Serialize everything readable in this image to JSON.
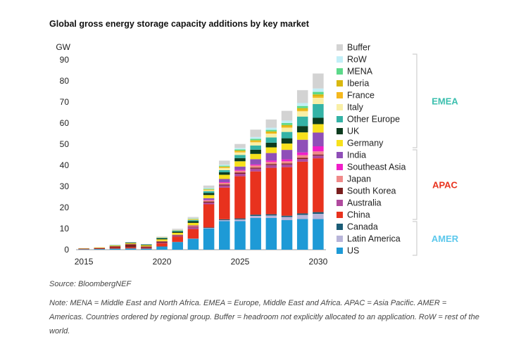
{
  "title": "Global gross energy storage capacity additions by key market",
  "source": "Source: BloombergNEF",
  "note": "Note: MENA = Middle East and North Africa. EMEA = Europe, Middle East and Africa. APAC = Asia Pacific. AMER = Americas. Countries ordered by regional group. Buffer = headroom not explicitly allocated to an application. RoW = rest of the world.",
  "colors": {
    "US": "#1e9ad6",
    "Latin America": "#b8b5d9",
    "Canada": "#1b5c76",
    "China": "#e8321e",
    "Australia": "#b04a9e",
    "South Korea": "#7a1f1f",
    "Japan": "#f08a8a",
    "Southeast Asia": "#f01ec8",
    "India": "#8f4fb8",
    "Germany": "#f7e11c",
    "UK": "#0d3b1f",
    "Other Europe": "#34b3a6",
    "Italy": "#f9efa6",
    "France": "#f5b81e",
    "Iberia": "#d9b80f",
    "MENA": "#5cd98a",
    "RoW": "#c2eff7",
    "Buffer": "#d3d3d3",
    "EMEA": "#3bbfae",
    "APAC": "#e8321e",
    "AMER": "#5cc8ec"
  },
  "chart_data": {
    "type": "bar",
    "stacked": true,
    "title": "Global gross energy storage capacity additions by key market",
    "ylabel": "GW",
    "xlabel": "",
    "ylim": [
      0,
      90
    ],
    "yticks": [
      0,
      10,
      20,
      30,
      40,
      50,
      60,
      70,
      80,
      90
    ],
    "xticks": [
      "2015",
      "2020",
      "2025",
      "2030"
    ],
    "categories": [
      "2015",
      "2016",
      "2017",
      "2018",
      "2019",
      "2020",
      "2021",
      "2022",
      "2023",
      "2024",
      "2025",
      "2026",
      "2027",
      "2028",
      "2029",
      "2030"
    ],
    "series": [
      {
        "name": "US",
        "values": [
          0.2,
          0.3,
          0.5,
          0.6,
          0.5,
          1.5,
          3.5,
          5,
          10,
          13.5,
          13.5,
          15,
          15,
          14,
          14.5,
          14.5
        ]
      },
      {
        "name": "Latin America",
        "values": [
          0,
          0,
          0,
          0,
          0,
          0,
          0.1,
          0.2,
          0.3,
          0.5,
          0.8,
          1,
          1.2,
          1.5,
          2,
          2.5
        ]
      },
      {
        "name": "Canada",
        "values": [
          0,
          0,
          0,
          0,
          0,
          0,
          0.1,
          0.1,
          0.2,
          0.4,
          0.5,
          0.6,
          0.6,
          0.6,
          0.7,
          0.8
        ]
      },
      {
        "name": "China",
        "values": [
          0.1,
          0.2,
          0.5,
          0.5,
          0.4,
          1.5,
          2.5,
          4.5,
          11,
          15,
          20,
          20.5,
          22,
          23,
          24.5,
          25.5
        ]
      },
      {
        "name": "Australia",
        "values": [
          0,
          0,
          0,
          0,
          0.1,
          0.3,
          0.3,
          0.8,
          0.8,
          1,
          1.2,
          1.3,
          1.3,
          1.3,
          1.3,
          1.3
        ]
      },
      {
        "name": "South Korea",
        "values": [
          0.2,
          0.3,
          0.6,
          1.5,
          0.5,
          0.6,
          0.3,
          0.3,
          0.5,
          0.5,
          0.5,
          0.5,
          0.5,
          0.5,
          0.5,
          0.5
        ]
      },
      {
        "name": "Japan",
        "values": [
          0.1,
          0.1,
          0.1,
          0.1,
          0.1,
          0.2,
          0.2,
          0.3,
          0.6,
          0.8,
          0.9,
          1,
          1,
          1,
          1.3,
          1.5
        ]
      },
      {
        "name": "Southeast Asia",
        "values": [
          0,
          0,
          0,
          0,
          0,
          0,
          0,
          0.1,
          0.2,
          0.3,
          0.4,
          0.5,
          0.7,
          0.9,
          1.3,
          2.4
        ]
      },
      {
        "name": "India",
        "values": [
          0,
          0,
          0,
          0,
          0,
          0,
          0.1,
          0.2,
          0.8,
          1.5,
          1.6,
          2.5,
          3.5,
          4.5,
          6,
          6.5
        ]
      },
      {
        "name": "Germany",
        "values": [
          0.1,
          0.2,
          0.3,
          0.4,
          0.5,
          0.8,
          0.9,
          1.2,
          1.5,
          2,
          2.5,
          2.5,
          2.7,
          3,
          3.5,
          4
        ]
      },
      {
        "name": "UK",
        "values": [
          0,
          0,
          0.1,
          0.3,
          0.3,
          0.5,
          0.6,
          0.8,
          1,
          1.2,
          1.5,
          2,
          2.2,
          2.5,
          3,
          3
        ]
      },
      {
        "name": "Other Europe",
        "values": [
          0,
          0,
          0.1,
          0.1,
          0.2,
          0.3,
          0.4,
          0.5,
          0.8,
          1,
          1.5,
          2,
          2.5,
          3,
          4.5,
          6.5
        ]
      },
      {
        "name": "Italy",
        "values": [
          0,
          0,
          0,
          0,
          0,
          0.1,
          0.1,
          0.2,
          0.4,
          1,
          1.2,
          1.5,
          1.8,
          2,
          2.5,
          3
        ]
      },
      {
        "name": "France",
        "values": [
          0,
          0,
          0,
          0,
          0,
          0.1,
          0.1,
          0.2,
          0.3,
          0.4,
          0.5,
          0.5,
          0.5,
          0.5,
          0.6,
          0.6
        ]
      },
      {
        "name": "Iberia",
        "values": [
          0,
          0,
          0,
          0,
          0,
          0,
          0,
          0.1,
          0.2,
          0.3,
          0.4,
          0.5,
          0.6,
          0.8,
          0.9,
          1
        ]
      },
      {
        "name": "MENA",
        "values": [
          0,
          0,
          0,
          0,
          0,
          0,
          0.1,
          0.2,
          0.3,
          0.4,
          0.5,
          0.6,
          0.7,
          0.9,
          1,
          1.2
        ]
      },
      {
        "name": "RoW",
        "values": [
          0,
          0,
          0,
          0,
          0,
          0,
          0.1,
          0.2,
          0.3,
          0.5,
          0.7,
          0.9,
          1,
          1.2,
          1.4,
          1.6
        ]
      },
      {
        "name": "Buffer",
        "values": [
          0,
          0,
          0,
          0.1,
          0.1,
          0.3,
          0.5,
          0.6,
          1.2,
          1.9,
          1.9,
          3.5,
          3.9,
          4.6,
          6.1,
          7.1
        ]
      }
    ],
    "legend": [
      "Buffer",
      "RoW",
      "MENA",
      "Iberia",
      "France",
      "Italy",
      "Other Europe",
      "UK",
      "Germany",
      "India",
      "Southeast Asia",
      "Japan",
      "South Korea",
      "Australia",
      "China",
      "Canada",
      "Latin America",
      "US"
    ],
    "legend_position": "right",
    "groups": [
      {
        "name": "EMEA",
        "members": [
          "RoW",
          "MENA",
          "Iberia",
          "France",
          "Italy",
          "Other Europe",
          "UK",
          "Germany"
        ]
      },
      {
        "name": "APAC",
        "members": [
          "India",
          "Southeast Asia",
          "Japan",
          "South Korea",
          "Australia",
          "China"
        ]
      },
      {
        "name": "AMER",
        "members": [
          "Canada",
          "Latin America",
          "US"
        ]
      }
    ],
    "grid": false
  }
}
